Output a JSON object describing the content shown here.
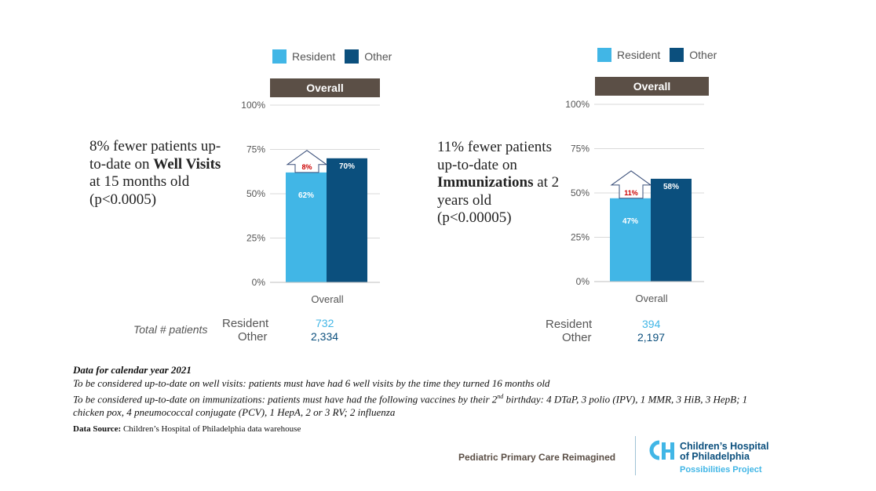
{
  "legend": {
    "resident": "Resident",
    "other": "Other"
  },
  "colors": {
    "resident": "#41b6e6",
    "other": "#0b4f7d",
    "banner": "#5b4f46",
    "diff_text": "#cc0000"
  },
  "charts": [
    {
      "banner": "Overall",
      "headline_pre": "8% fewer patients up-to-date on",
      "headline_bold": "Well Visits",
      "headline_post": "at 15 months old (p<0.0005)",
      "diff_label": "8%",
      "totals_label": "Total # patients",
      "totals_resident_label": "Resident",
      "totals_other_label": "Other",
      "totals_resident": "732",
      "totals_other": "2,334"
    },
    {
      "banner": "Overall",
      "headline_pre": "11% fewer patients up-to-date on",
      "headline_bold": "Immunizations",
      "headline_post": "at 2 years old (p<0.00005)",
      "diff_label": "11%",
      "totals_resident_label": "Resident",
      "totals_other_label": "Other",
      "totals_resident": "394",
      "totals_other": "2,197"
    }
  ],
  "chart_data": [
    {
      "type": "bar",
      "categories": [
        "Overall"
      ],
      "series": [
        {
          "name": "Resident",
          "values": [
            62
          ],
          "labels": [
            "62%"
          ]
        },
        {
          "name": "Other",
          "values": [
            70
          ],
          "labels": [
            "70%"
          ]
        }
      ],
      "yticks": [
        "100%",
        "75%",
        "50%",
        "25%",
        "0%"
      ],
      "ylim": [
        0,
        100
      ],
      "grid": true,
      "legend": "top"
    },
    {
      "type": "bar",
      "categories": [
        "Overall"
      ],
      "series": [
        {
          "name": "Resident",
          "values": [
            47
          ],
          "labels": [
            "47%"
          ]
        },
        {
          "name": "Other",
          "values": [
            58
          ],
          "labels": [
            "58%"
          ]
        }
      ],
      "yticks": [
        "100%",
        "75%",
        "50%",
        "25%",
        "0%"
      ],
      "ylim": [
        0,
        100
      ],
      "grid": true,
      "legend": "top"
    }
  ],
  "notes": {
    "title": "Data for calendar year 2021",
    "line1": "To be considered up-to-date on well visits: patients must have had 6 well visits by the time they turned 16 months old",
    "line2_pre": "To be considered up-to-date on immunizations: patients must have had the following vaccines by their 2",
    "line2_sup": "nd",
    "line2_post": " birthday: 4 DTaP, 3 polio (IPV),  1 MMR, 3 HiB, 3 HepB; 1 chicken pox, 4 pneumococcal conjugate (PCV), 1 HepA, 2 or 3 RV;  2 influenza"
  },
  "source": {
    "label": "Data Source:",
    "text": " Children’s Hospital of Philadelphia data warehouse"
  },
  "footer": {
    "tagline": "Pediatric Primary Care Reimagined",
    "logo_line1": "Children’s Hospital",
    "logo_line2": "of Philadelphia",
    "logo_sub": "Possibilities Project"
  }
}
